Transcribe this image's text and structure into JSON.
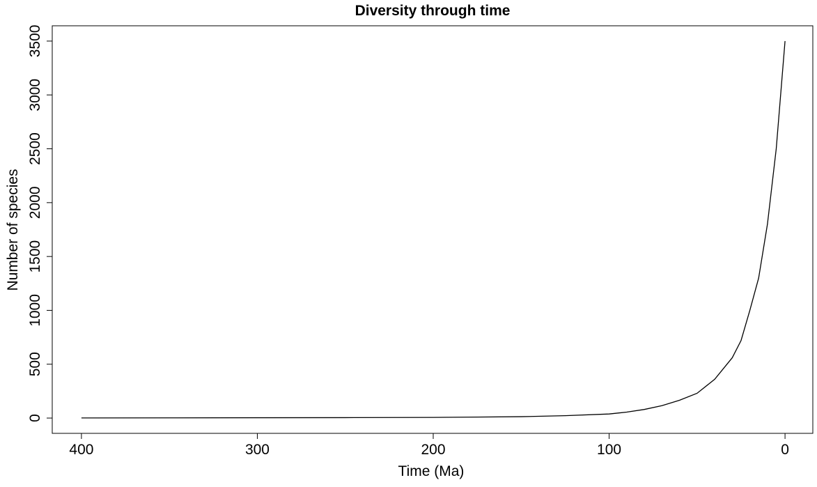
{
  "chart_data": {
    "type": "line",
    "title": "Diversity through time",
    "x_label": "Time (Ma)",
    "y_label": "Number of species",
    "x": [
      400,
      350,
      300,
      250,
      200,
      175,
      150,
      125,
      100,
      90,
      80,
      70,
      60,
      50,
      40,
      30,
      25,
      20,
      15,
      10,
      5,
      0
    ],
    "values": [
      1,
      2,
      3,
      4,
      6,
      9,
      13,
      22,
      38,
      55,
      80,
      115,
      165,
      230,
      360,
      560,
      720,
      1000,
      1300,
      1800,
      2500,
      3500
    ],
    "color": "#000000",
    "xlim": [
      416.6,
      -15.8
    ],
    "xticks": [
      400,
      300,
      200,
      100,
      0
    ],
    "ylim": [
      -142,
      3642
    ],
    "yticks": [
      0,
      500,
      1000,
      1500,
      2000,
      2500,
      3000,
      3500
    ]
  }
}
